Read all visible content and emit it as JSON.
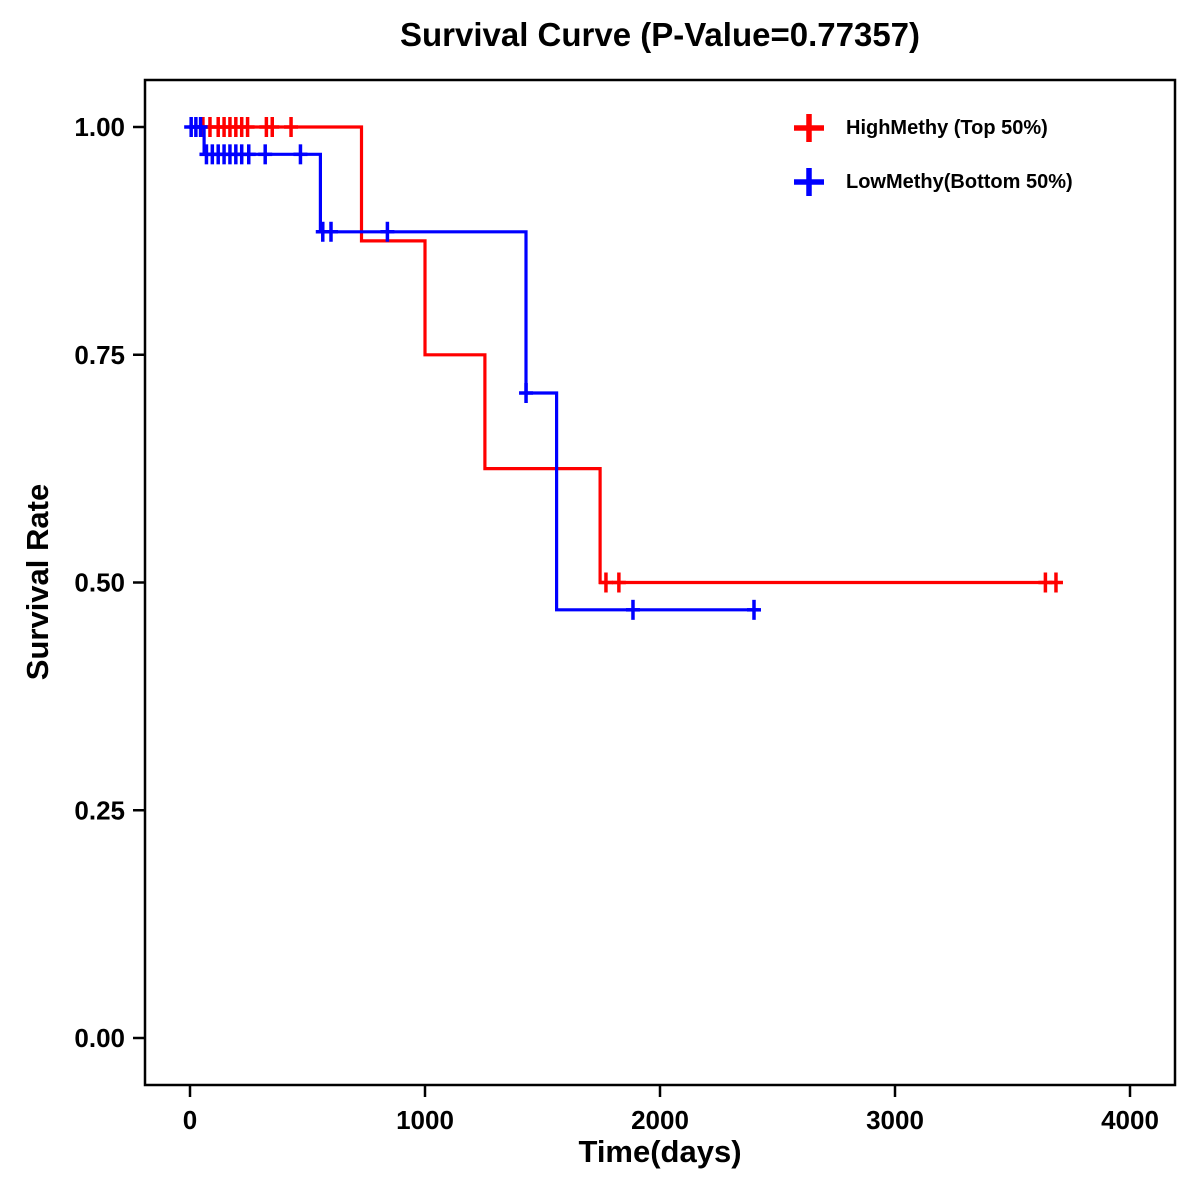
{
  "chart_data": {
    "type": "line",
    "subtype": "kaplan-meier-step",
    "title": "Survival Curve (P-Value=0.77357)",
    "xlabel": "Time(days)",
    "ylabel": "Survival Rate",
    "xlim": [
      0,
      4000
    ],
    "ylim": [
      0,
      1.0
    ],
    "xticks": [
      0,
      1000,
      2000,
      3000,
      4000
    ],
    "xtick_labels": [
      "0",
      "1000",
      "2000",
      "3000",
      "4000"
    ],
    "yticks": [
      0.0,
      0.25,
      0.5,
      0.75,
      1.0
    ],
    "ytick_labels": [
      "0.00",
      "0.25",
      "0.50",
      "0.75",
      "1.00"
    ],
    "grid": false,
    "legend_position": "top-right",
    "axis_color": "#000000",
    "background_color": "#FFFFFF",
    "series": [
      {
        "name": "HighMethy (Top 50%)",
        "color": "#FF0000",
        "steps": [
          [
            0,
            1.0
          ],
          [
            730,
            0.875
          ],
          [
            1000,
            0.75
          ],
          [
            1255,
            0.625
          ],
          [
            1745,
            0.5
          ]
        ],
        "end_x": 3685,
        "censor_marks": [
          [
            55,
            1.0
          ],
          [
            85,
            1.0
          ],
          [
            120,
            1.0
          ],
          [
            145,
            1.0
          ],
          [
            170,
            1.0
          ],
          [
            195,
            1.0
          ],
          [
            220,
            1.0
          ],
          [
            245,
            1.0
          ],
          [
            325,
            1.0
          ],
          [
            350,
            1.0
          ],
          [
            430,
            1.0
          ],
          [
            1770,
            0.5
          ],
          [
            1825,
            0.5
          ],
          [
            3640,
            0.5
          ],
          [
            3685,
            0.5
          ]
        ]
      },
      {
        "name": "LowMethy(Bottom 50%)",
        "color": "#0000FF",
        "steps": [
          [
            0,
            1.0
          ],
          [
            60,
            0.97
          ],
          [
            555,
            0.885
          ],
          [
            1430,
            0.708
          ],
          [
            1560,
            0.47
          ]
        ],
        "end_x": 2420,
        "censor_marks": [
          [
            5,
            1.0
          ],
          [
            25,
            1.0
          ],
          [
            45,
            1.0
          ],
          [
            70,
            0.97
          ],
          [
            95,
            0.97
          ],
          [
            120,
            0.97
          ],
          [
            145,
            0.97
          ],
          [
            170,
            0.97
          ],
          [
            195,
            0.97
          ],
          [
            220,
            0.97
          ],
          [
            250,
            0.97
          ],
          [
            320,
            0.97
          ],
          [
            470,
            0.97
          ],
          [
            565,
            0.885
          ],
          [
            600,
            0.885
          ],
          [
            840,
            0.885
          ],
          [
            1430,
            0.708
          ],
          [
            1885,
            0.47
          ],
          [
            2400,
            0.47
          ]
        ]
      }
    ]
  }
}
